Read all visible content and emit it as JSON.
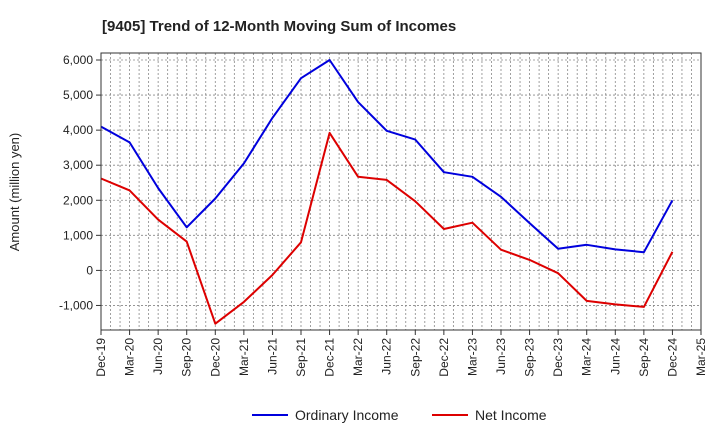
{
  "chart_data": {
    "type": "line",
    "title": "[9405]  Trend of 12-Month Moving Sum of Incomes",
    "xlabel": "",
    "ylabel": "Amount (million yen)",
    "ylim": [
      -1700,
      6200
    ],
    "yticks": [
      -1000,
      0,
      1000,
      2000,
      3000,
      4000,
      5000,
      6000
    ],
    "ytick_labels": [
      "-1,000",
      "0",
      "1,000",
      "2,000",
      "3,000",
      "4,000",
      "5,000",
      "6,000"
    ],
    "categories": [
      "Dec-19",
      "Mar-20",
      "Jun-20",
      "Sep-20",
      "Dec-20",
      "Mar-21",
      "Jun-21",
      "Sep-21",
      "Dec-21",
      "Mar-22",
      "Jun-22",
      "Sep-22",
      "Dec-22",
      "Mar-23",
      "Jun-23",
      "Sep-23",
      "Dec-23",
      "Mar-24",
      "Jun-24",
      "Sep-24",
      "Dec-24",
      "Mar-25"
    ],
    "series": [
      {
        "name": "Ordinary Income",
        "color": "#0000dd",
        "values": [
          4100,
          3650,
          2350,
          1230,
          2050,
          3050,
          4350,
          5480,
          6000,
          4800,
          3980,
          3730,
          2800,
          2670,
          2100,
          1350,
          620,
          730,
          600,
          520,
          2000,
          null
        ]
      },
      {
        "name": "Net Income",
        "color": "#dd0000",
        "values": [
          2620,
          2280,
          1450,
          820,
          -1520,
          -900,
          -130,
          800,
          3920,
          2670,
          2580,
          1970,
          1180,
          1360,
          590,
          300,
          -80,
          -870,
          -970,
          -1040,
          530,
          null
        ]
      }
    ],
    "grid": true,
    "legend": "bottom-center"
  }
}
